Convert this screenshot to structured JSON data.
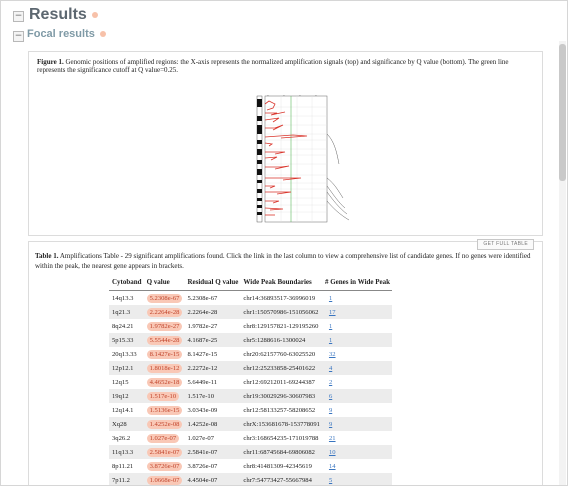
{
  "header": {
    "title": "Results",
    "subtitle": "Focal results",
    "collapse_glyph": "−"
  },
  "figure": {
    "caption_label": "Figure 1.",
    "caption_text": "Genomic positions of amplified regions: the X-axis represents the normalized amplification signals (top) and significance by Q value (bottom). The green line represents the significance cutoff at Q value=0.25."
  },
  "table": {
    "caption_label": "Table 1.",
    "caption_text": "Amplifications Table - 29 significant amplifications found. Click the link in the last column to view a comprehensive list of candidate genes. If no genes were identified within the peak, the nearest gene appears in brackets.",
    "full_table_button": "GET FULL TABLE",
    "headers": [
      "Cytoband",
      "Q value",
      "Residual Q value",
      "Wide Peak Boundaries",
      "# Genes in Wide Peak"
    ],
    "rows": [
      {
        "cytoband": "14q13.3",
        "q": "5.2308e-67",
        "resid": "5.2308e-67",
        "peak": "chr14:36893517-36996019",
        "genes": "1"
      },
      {
        "cytoband": "1q21.3",
        "q": "2.2264e-28",
        "resid": "2.2264e-28",
        "peak": "chr1:150570986-151056062",
        "genes": "17"
      },
      {
        "cytoband": "8q24.21",
        "q": "1.9782e-27",
        "resid": "1.9782e-27",
        "peak": "chr8:129157821-129195260",
        "genes": "1"
      },
      {
        "cytoband": "5p15.33",
        "q": "5.5544e-28",
        "resid": "4.1687e-25",
        "peak": "chr5:1288616-1300024",
        "genes": "1"
      },
      {
        "cytoband": "20q13.33",
        "q": "8.1427e-15",
        "resid": "8.1427e-15",
        "peak": "chr20:62157760-63025520",
        "genes": "32"
      },
      {
        "cytoband": "12p12.1",
        "q": "1.8018e-12",
        "resid": "2.2272e-12",
        "peak": "chr12:25233858-25401622",
        "genes": "4"
      },
      {
        "cytoband": "12q15",
        "q": "4.4652e-18",
        "resid": "5.6449e-11",
        "peak": "chr12:69212011-69244387",
        "genes": "2"
      },
      {
        "cytoband": "19q12",
        "q": "1.517e-10",
        "resid": "1.517e-10",
        "peak": "chr19:30029296-30607983",
        "genes": "6"
      },
      {
        "cytoband": "12q14.1",
        "q": "1.5136e-15",
        "resid": "3.0343e-09",
        "peak": "chr12:58133257-58208652",
        "genes": "9"
      },
      {
        "cytoband": "Xq28",
        "q": "1.4252e-08",
        "resid": "1.4252e-08",
        "peak": "chrX:153681678-153778091",
        "genes": "9"
      },
      {
        "cytoband": "3q26.2",
        "q": "1.027e-07",
        "resid": "1.027e-07",
        "peak": "chr3:168654235-171019788",
        "genes": "21"
      },
      {
        "cytoband": "11q13.3",
        "q": "2.5841e-07",
        "resid": "2.5841e-07",
        "peak": "chr11:68745684-69806082",
        "genes": "10"
      },
      {
        "cytoband": "8p11.21",
        "q": "3.8726e-07",
        "resid": "3.8726e-07",
        "peak": "chr8:41481309-42345619",
        "genes": "14"
      },
      {
        "cytoband": "7p11.2",
        "q": "1.0668e-07",
        "resid": "4.4504e-07",
        "peak": "chr7:54773427-55667984",
        "genes": "5"
      }
    ]
  },
  "colors": {
    "accent": "#f7c1a9",
    "q_text": "#c0432a",
    "link": "#3975c0"
  },
  "icons": {
    "collapse": "minus-box-icon",
    "section_dot": "circle-dot-icon"
  }
}
